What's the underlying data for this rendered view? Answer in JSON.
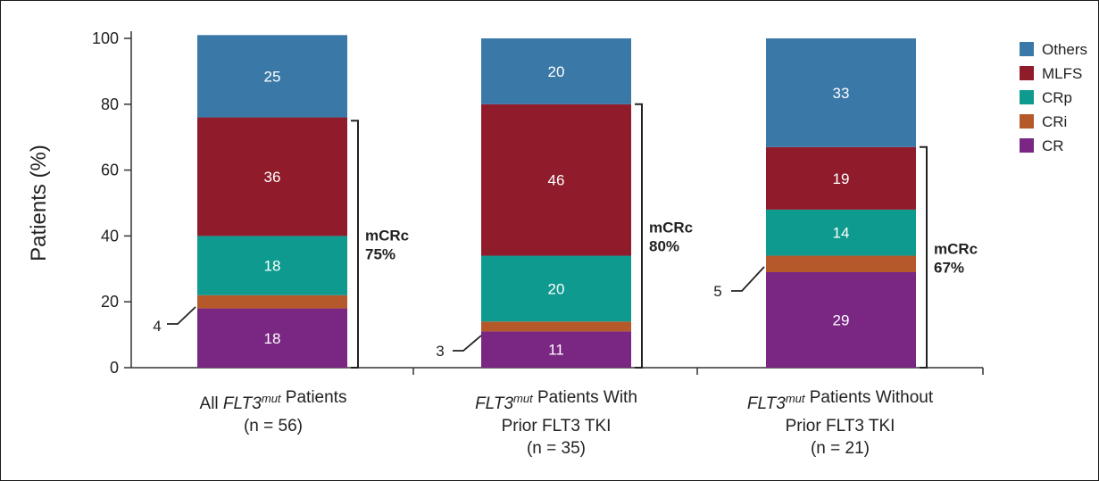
{
  "chart_data": {
    "type": "bar",
    "stacked": true,
    "ylabel": "Patients (%)",
    "ylim": [
      0,
      100
    ],
    "yticks": [
      "0",
      "20",
      "40",
      "60",
      "80",
      "100"
    ],
    "categories": [
      {
        "name_italic": "FLT3",
        "sup": "mut",
        "lines": [
          "All |FLT3mut| Patients",
          "(n = 56)"
        ]
      },
      {
        "name_italic": "FLT3",
        "sup": "mut",
        "lines": [
          "|FLT3mut| Patients With",
          "Prior FLT3 TKI",
          "(n = 35)"
        ]
      },
      {
        "name_italic": "FLT3",
        "sup": "mut",
        "lines": [
          "|FLT3mut| Patients Without",
          "Prior FLT3 TKI",
          "(n = 21)"
        ]
      }
    ],
    "series": [
      {
        "name": "CR",
        "color": "#7a2683",
        "values": [
          18,
          11,
          29
        ],
        "labels": [
          "18",
          "11",
          "29"
        ]
      },
      {
        "name": "CRi",
        "color": "#b5592a",
        "values": [
          4,
          3,
          5
        ],
        "labels": [
          "4",
          "3",
          "5"
        ]
      },
      {
        "name": "CRp",
        "color": "#0e9a8e",
        "values": [
          18,
          20,
          14
        ],
        "labels": [
          "18",
          "20",
          "14"
        ]
      },
      {
        "name": "MLFS",
        "color": "#8f1b2b",
        "values": [
          36,
          46,
          19
        ],
        "labels": [
          "36",
          "46",
          "19"
        ]
      },
      {
        "name": "Others",
        "color": "#3a78a8",
        "values": [
          25,
          20,
          33
        ],
        "labels": [
          "25",
          "20",
          "33"
        ]
      }
    ],
    "legend_order": [
      "Others",
      "MLFS",
      "CRp",
      "CRi",
      "CR"
    ],
    "legend_position": "top-right",
    "brackets": [
      {
        "label_line1": "mCRc",
        "label_line2": "75%",
        "top": 75
      },
      {
        "label_line1": "mCRc",
        "label_line2": "80%",
        "top": 80
      },
      {
        "label_line1": "mCRc",
        "label_line2": "67%",
        "top": 67
      }
    ],
    "grid": false
  }
}
